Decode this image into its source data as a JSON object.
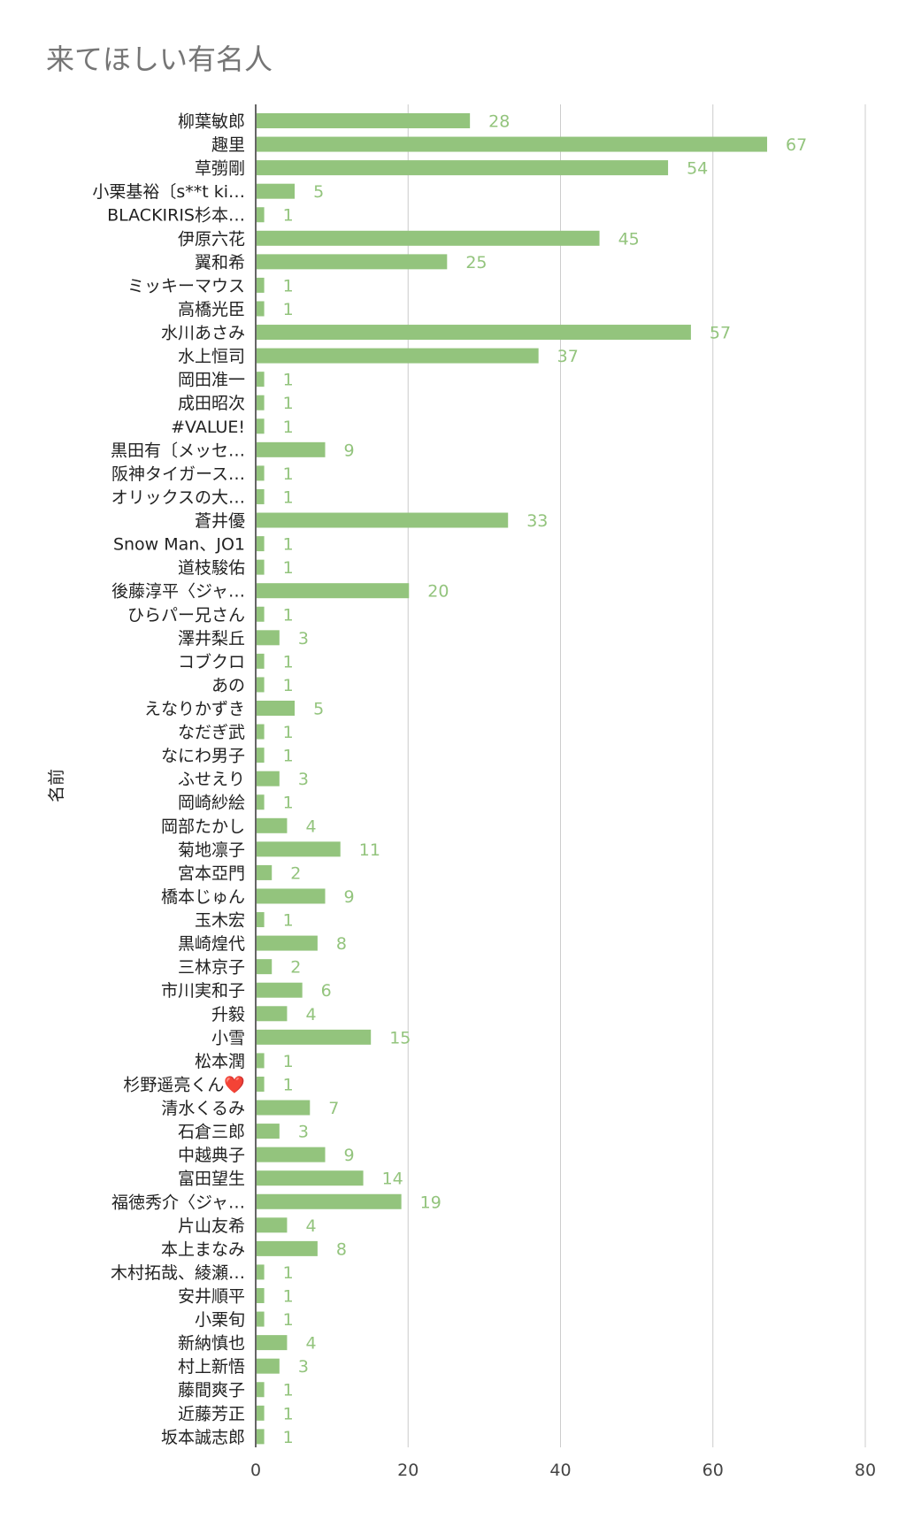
{
  "chart_data": {
    "type": "bar",
    "orientation": "horizontal",
    "title": "来てほしい有名人",
    "ylabel": "名前",
    "xlabel": "",
    "xlim": [
      0,
      80
    ],
    "xticks": [
      0,
      20,
      40,
      60,
      80
    ],
    "grid": true,
    "bar_color": "#93c47d",
    "categories": [
      "柳葉敏郎",
      "趣里",
      "草彅剛",
      "小栗基裕〔s**t ki…",
      "BLACKIRIS杉本…",
      "伊原六花",
      "翼和希",
      "ミッキーマウス",
      "高橋光臣",
      "水川あさみ",
      "水上恒司",
      "岡田准一",
      "成田昭次",
      "#VALUE!",
      "黒田有〔メッセ…",
      "阪神タイガース…",
      "オリックスの大…",
      "蒼井優",
      "Snow Man、JO1",
      "道枝駿佑",
      "後藤淳平〈ジャ…",
      "ひらパー兄さん",
      "澤井梨丘",
      "コブクロ",
      "あの",
      "えなりかずき",
      "なだぎ武",
      "なにわ男子",
      "ふせえり",
      "岡崎紗絵",
      "岡部たかし",
      "菊地凛子",
      "宮本亞門",
      "橋本じゅん",
      "玉木宏",
      "黒崎煌代",
      "三林京子",
      "市川実和子",
      "升毅",
      "小雪",
      "松本潤",
      "杉野遥亮くん❤️",
      "清水くるみ",
      "石倉三郎",
      "中越典子",
      "富田望生",
      "福徳秀介〈ジャ…",
      "片山友希",
      "本上まなみ",
      "木村拓哉、綾瀬…",
      "安井順平",
      "小栗旬",
      "新納慎也",
      "村上新悟",
      "藤間爽子",
      "近藤芳正",
      "坂本誠志郎"
    ],
    "values": [
      28,
      67,
      54,
      5,
      1,
      45,
      25,
      1,
      1,
      57,
      37,
      1,
      1,
      1,
      9,
      1,
      1,
      33,
      1,
      1,
      20,
      1,
      3,
      1,
      1,
      5,
      1,
      1,
      3,
      1,
      4,
      11,
      2,
      9,
      1,
      8,
      2,
      6,
      4,
      15,
      1,
      1,
      7,
      3,
      9,
      14,
      19,
      4,
      8,
      1,
      1,
      1,
      4,
      3,
      1,
      1,
      1
    ]
  }
}
